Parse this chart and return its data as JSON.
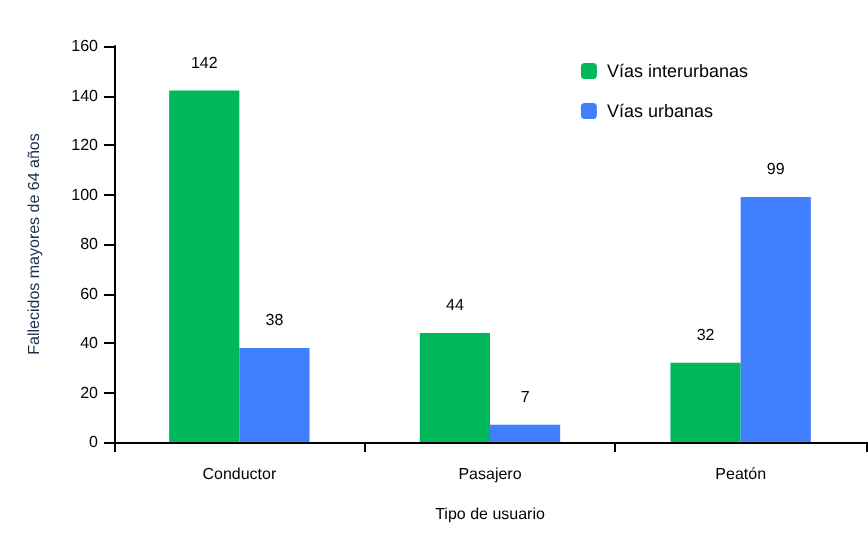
{
  "chart_data": {
    "type": "bar",
    "xlabel": "Tipo de usuario",
    "ylabel": "Fallecidos mayores de 64 años",
    "categories": [
      "Conductor",
      "Pasajero",
      "Peatón"
    ],
    "series": [
      {
        "name": "Vías interurbanas",
        "color": "#00b85c",
        "values": [
          142,
          44,
          32
        ]
      },
      {
        "name": "Vías urbanas",
        "color": "#4080ff",
        "values": [
          38,
          7,
          99
        ]
      }
    ],
    "ylim": [
      0,
      160
    ],
    "yticks": [
      0,
      20,
      40,
      60,
      80,
      100,
      120,
      140,
      160
    ],
    "grid": false,
    "legend": "top right",
    "data_labels": true
  }
}
